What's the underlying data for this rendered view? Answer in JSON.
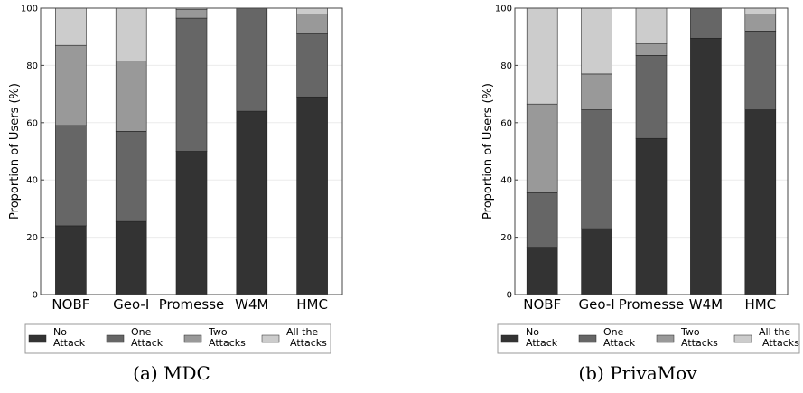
{
  "chart_data": [
    {
      "type": "bar",
      "stacked": true,
      "caption": "(a) MDC",
      "ylabel": "Proportion of Users (%)",
      "ylim": [
        0,
        100
      ],
      "yticks": [
        "0",
        "20",
        "40",
        "60",
        "80",
        "100"
      ],
      "categories": [
        "NOBF",
        "Geo-I",
        "Promesse",
        "W4M",
        "HMC"
      ],
      "series": [
        {
          "name_lines": [
            "No",
            "Attack"
          ],
          "color": "#333333",
          "values": [
            24,
            25.5,
            50,
            64,
            69
          ]
        },
        {
          "name_lines": [
            "One",
            "Attack"
          ],
          "color": "#666666",
          "values": [
            35,
            31.5,
            46.5,
            36,
            22
          ]
        },
        {
          "name_lines": [
            "Two",
            "Attacks"
          ],
          "color": "#999999",
          "values": [
            28,
            24.5,
            3,
            0,
            7
          ]
        },
        {
          "name_lines": [
            "All the",
            "Attacks"
          ],
          "color": "#cccccc",
          "values": [
            13,
            18.5,
            0.5,
            0,
            2
          ]
        }
      ]
    },
    {
      "type": "bar",
      "stacked": true,
      "caption": "(b) PrivaMov",
      "ylabel": "Proportion of Users (%)",
      "ylim": [
        0,
        100
      ],
      "yticks": [
        "0",
        "20",
        "40",
        "60",
        "80",
        "100"
      ],
      "categories": [
        "NOBF",
        "Geo-I",
        "Promesse",
        "W4M",
        "HMC"
      ],
      "series": [
        {
          "name_lines": [
            "No",
            "Attack"
          ],
          "color": "#333333",
          "values": [
            16.5,
            23,
            54.5,
            89.5,
            64.5
          ]
        },
        {
          "name_lines": [
            "One",
            "Attack"
          ],
          "color": "#666666",
          "values": [
            19,
            41.5,
            29,
            10.5,
            27.5
          ]
        },
        {
          "name_lines": [
            "Two",
            "Attacks"
          ],
          "color": "#999999",
          "values": [
            31,
            12.5,
            4,
            0,
            6
          ]
        },
        {
          "name_lines": [
            "All the",
            "Attacks"
          ],
          "color": "#cccccc",
          "values": [
            33.5,
            23,
            12.5,
            0,
            2
          ]
        }
      ]
    }
  ]
}
